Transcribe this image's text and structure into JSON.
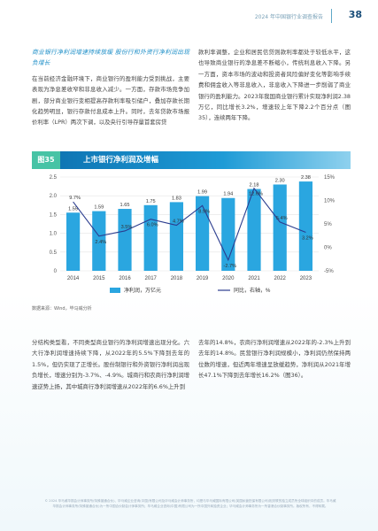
{
  "header": {
    "title": "2024 年中国银行业调查报告",
    "page": "38"
  },
  "left_top": {
    "heading": "商业银行净利润增速持续放缓 股份行和外资行净利润出现负增长",
    "body": "在当前经济金融环境下，商业银行的盈利能力受到挑战，主要表现为净息差收窄和非息收入减少。一方面，存款市场竞争加剧，部分商业银行变相提高存款利率吸引储户，叠加存款长期化趋势明显，银行存款付息成本上升。同时，去年贷款市场报价利率（LPR）两次下调，以及央行引导存量首套房贷"
  },
  "right_top": {
    "body": "款利率调整，企业和居民信贷则款利率都处于较低水平，这也导致商业银行的净息差不断缩小，传统利息收入下降。另一方面，资本市场的波动和投资者风险偏好变化等影响手续费和佣金收入等非息收入，非息收入下降进一步削弱了商业银行的盈利能力。2023年我国商业银行累计实现净利润2.38万亿，同比增长3.2%，增速较上年下降2.2个百分点（图35），连续两年下降。"
  },
  "figure": {
    "tag": "图35",
    "title": "上市银行净利润及增幅"
  },
  "chart_data": {
    "type": "bar",
    "categories": [
      "2014",
      "2015",
      "2016",
      "2017",
      "2018",
      "2019",
      "2020",
      "2021",
      "2022",
      "2023"
    ],
    "series": [
      {
        "name": "净利润，万亿元",
        "type": "bar",
        "axis": "left",
        "values": [
          1.55,
          1.59,
          1.65,
          1.75,
          1.83,
          1.99,
          1.94,
          2.18,
          2.3,
          2.38
        ],
        "labels": [
          "1.55",
          "1.59",
          "1.65",
          "1.75",
          "1.83",
          "1.99",
          "1.94",
          "2.18",
          "2.30",
          "2.38"
        ]
      },
      {
        "name": "同比，右轴，%",
        "type": "line",
        "axis": "right",
        "values": [
          9.7,
          2.4,
          3.5,
          6.0,
          4.7,
          8.9,
          -2.7,
          12.6,
          5.4,
          3.2
        ],
        "labels": [
          "9.7%",
          "2.4%",
          "3.5%",
          "6.0%",
          "4.7%",
          "8.9%",
          "-2.7%",
          "12.6%",
          "5.4%",
          "3.2%"
        ]
      }
    ],
    "left_axis": {
      "ylim": [
        0,
        2.5
      ],
      "ticks": [
        "0",
        "0.5",
        "1.0",
        "1.5",
        "2.0",
        "2.5"
      ]
    },
    "right_axis": {
      "ylim": [
        -5,
        15
      ],
      "ticks": [
        "-5%",
        "0%",
        "5%",
        "10%",
        "15%"
      ]
    },
    "legend_position": "bottom",
    "colors": {
      "bar": "#2aa6e0",
      "line": "#2b3d8f"
    }
  },
  "source": "数据来源：Wind，毕马威分析",
  "left_bot": {
    "body": "分结构类型看，不同类型商业银行的净利润增速出现分化。六大行净利润增速持续下降，从2022年的5.5%下降到去年的1.5%，但仍实现了正增长。股份制银行和外资银行净利润出现负增长，增速分别为-3.7%、-4.9%。城商行和农商行净利润增速逆势上扬，其中城商行净利润增速从2022年的6.6%上升到"
  },
  "right_bot": {
    "body": "去年的14.8%，农商行净利润增速从2022年的-2.3%上升到去年的14.8%。民营银行净利润规模小，净利润仍然保持两位数的增速，但近两年增速呈放缓趋势，净利润从2021年增长47.1%下降到去年增长16.2%（图36）。"
  },
  "footer": "© 2024 毕马威华振会计师事务所(特殊普通合伙)、毕马威企业咨询(中国)有限公司及毕马威会计师事务所，均是与毕马威国际有限公司(英国私营担保有限公司)相关联的独立成员所全球组织中的成员。毕马威华振会计师事务所(特殊普通合伙)为一所中国合伙制会计师事务所；毕马威企业咨询(中国)有限公司为一所中国外商独资企业；毕马威会计师事务所为一所香港合伙制事务所。版权所有，不得转载。"
}
